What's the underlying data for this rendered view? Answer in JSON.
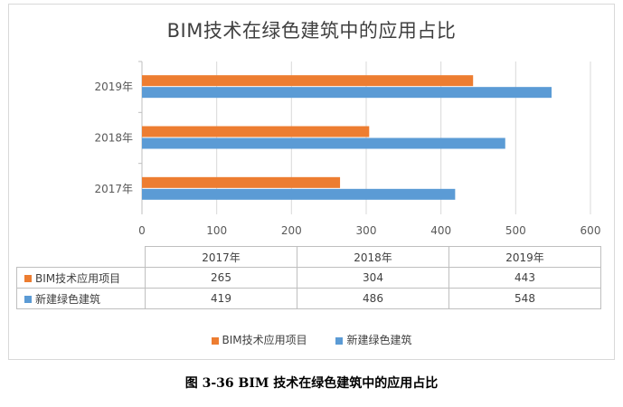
{
  "chart_data": {
    "type": "bar",
    "orientation": "horizontal",
    "title": "BIM技术在绿色建筑中的应用占比",
    "categories": [
      "2017年",
      "2018年",
      "2019年"
    ],
    "series": [
      {
        "name": "BIM技术应用项目",
        "values": [
          265,
          304,
          443
        ],
        "color": "#ed7d31"
      },
      {
        "name": "新建绿色建筑",
        "values": [
          419,
          486,
          548
        ],
        "color": "#5b9bd5"
      }
    ],
    "xlim": [
      0,
      600
    ],
    "xticks": [
      0,
      100,
      200,
      300,
      400,
      500,
      600
    ],
    "grid": true,
    "legend_position": "bottom",
    "data_table": true
  },
  "caption": "图 3-36 BIM 技术在绿色建筑中的应用占比",
  "colors": {
    "gridline": "#d9d9d9",
    "axis": "#bfbfbf"
  }
}
